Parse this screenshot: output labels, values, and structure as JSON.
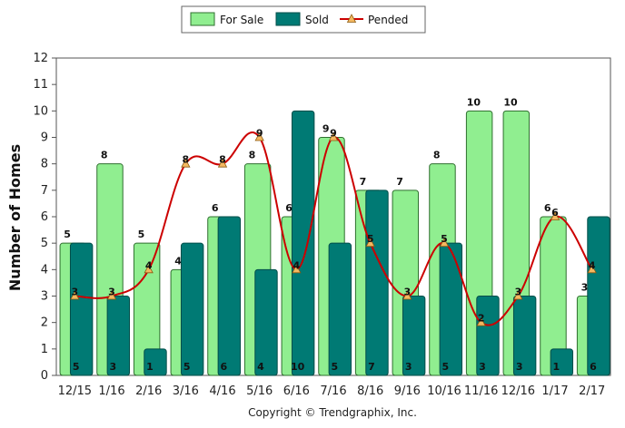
{
  "chart_data": {
    "type": "bar",
    "title": "",
    "xlabel": "",
    "ylabel": "Number of Homes",
    "ylim": [
      0,
      12
    ],
    "yticks": [
      0,
      1,
      2,
      3,
      4,
      5,
      6,
      7,
      8,
      9,
      10,
      11,
      12
    ],
    "categories": [
      "12/15",
      "1/16",
      "2/16",
      "3/16",
      "4/16",
      "5/16",
      "6/16",
      "7/16",
      "8/16",
      "9/16",
      "10/16",
      "11/16",
      "12/16",
      "1/17",
      "2/17"
    ],
    "series": [
      {
        "name": "For Sale",
        "kind": "bar",
        "color": "#90EE90",
        "values": [
          5,
          8,
          5,
          4,
          6,
          8,
          6,
          9,
          7,
          7,
          8,
          10,
          10,
          6,
          3
        ],
        "labels": [
          "5",
          "8",
          "5",
          "4",
          "6",
          "8",
          "6",
          "9",
          "7",
          "7",
          "8",
          "10",
          "10",
          "6",
          "3"
        ]
      },
      {
        "name": "Sold",
        "kind": "bar",
        "color": "#007A74",
        "values": [
          5,
          3,
          1,
          5,
          6,
          4,
          10,
          5,
          7,
          3,
          5,
          3,
          3,
          1,
          6
        ],
        "labels": [
          "5",
          "3",
          "1",
          "5",
          "6",
          "4",
          "10",
          "5",
          "7",
          "3",
          "5",
          "3",
          "3",
          "1",
          "6"
        ]
      },
      {
        "name": "Pended",
        "kind": "line",
        "color": "#CC0000",
        "marker_color": "#F4B860",
        "values": [
          3,
          3,
          4,
          8,
          8,
          9,
          4,
          9,
          5,
          3,
          5,
          2,
          3,
          6,
          4
        ],
        "labels": [
          "3",
          "3",
          "4",
          "8",
          "8",
          "9",
          "4",
          "9",
          "5",
          "3",
          "5",
          "2",
          "3",
          "6",
          "4"
        ]
      }
    ],
    "grid": false,
    "legend": "top-center"
  },
  "footer": {
    "copyright": "Copyright © Trendgraphix, Inc."
  }
}
